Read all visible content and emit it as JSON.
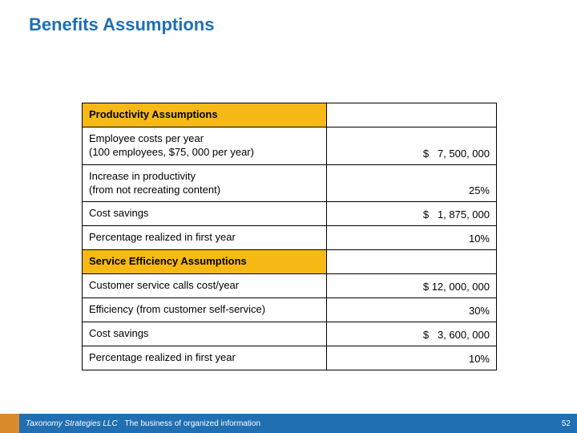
{
  "title": "Benefits Assumptions",
  "table": {
    "section1": {
      "header": "Productivity Assumptions",
      "rows": [
        {
          "label": "Employee costs per year\n(100 employees, $75, 000 per year)",
          "value": "$   7, 500, 000"
        },
        {
          "label": "Increase in productivity\n(from not recreating content)",
          "value": "25%"
        },
        {
          "label": "Cost savings",
          "value": "$   1, 875, 000"
        },
        {
          "label": "Percentage realized in first year",
          "value": "10%"
        }
      ]
    },
    "section2": {
      "header": "Service Efficiency Assumptions",
      "rows": [
        {
          "label": "Customer service calls cost/year",
          "value": "$ 12, 000, 000"
        },
        {
          "label": "Efficiency (from customer self-service)",
          "value": "30%"
        },
        {
          "label": "Cost savings",
          "value": "$   3, 600, 000"
        },
        {
          "label": "Percentage realized in first year",
          "value": "10%"
        }
      ]
    }
  },
  "footer": {
    "company": "Taxonomy Strategies LLC",
    "tag": "The business of organized information",
    "page": "52"
  },
  "colors": {
    "title": "#1f6fb2",
    "header_bg": "#f7b915",
    "footer_blue": "#1f6fb2",
    "footer_orange": "#d98b2b"
  }
}
